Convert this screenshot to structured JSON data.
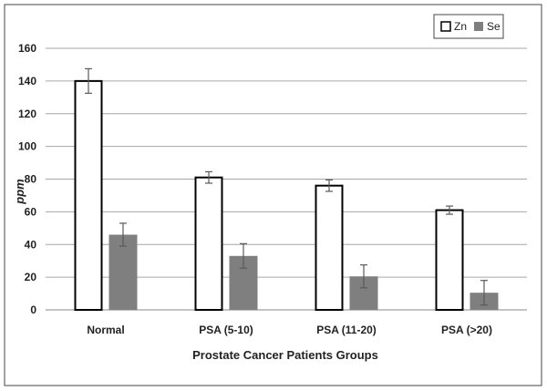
{
  "chart_data": {
    "type": "bar",
    "title": "",
    "xlabel": "Prostate Cancer Patients Groups",
    "ylabel": "ppm",
    "ylim": [
      0,
      160
    ],
    "yticks": [
      0,
      20,
      40,
      60,
      80,
      100,
      120,
      140,
      160
    ],
    "grid": true,
    "legend": "top-right",
    "categories": [
      "Normal",
      "PSA (5-10)",
      "PSA (11-20)",
      "PSA (>20)"
    ],
    "series": [
      {
        "name": "Zn",
        "style": "outline",
        "color": "#000000",
        "values": [
          140,
          81,
          76,
          61
        ],
        "error": [
          7.5,
          3.5,
          3.5,
          2.5
        ]
      },
      {
        "name": "Se",
        "style": "filled",
        "color": "#7f7f7f",
        "values": [
          46,
          33,
          20.5,
          10.5
        ],
        "error": [
          7,
          7.5,
          7,
          7.5
        ]
      }
    ]
  }
}
